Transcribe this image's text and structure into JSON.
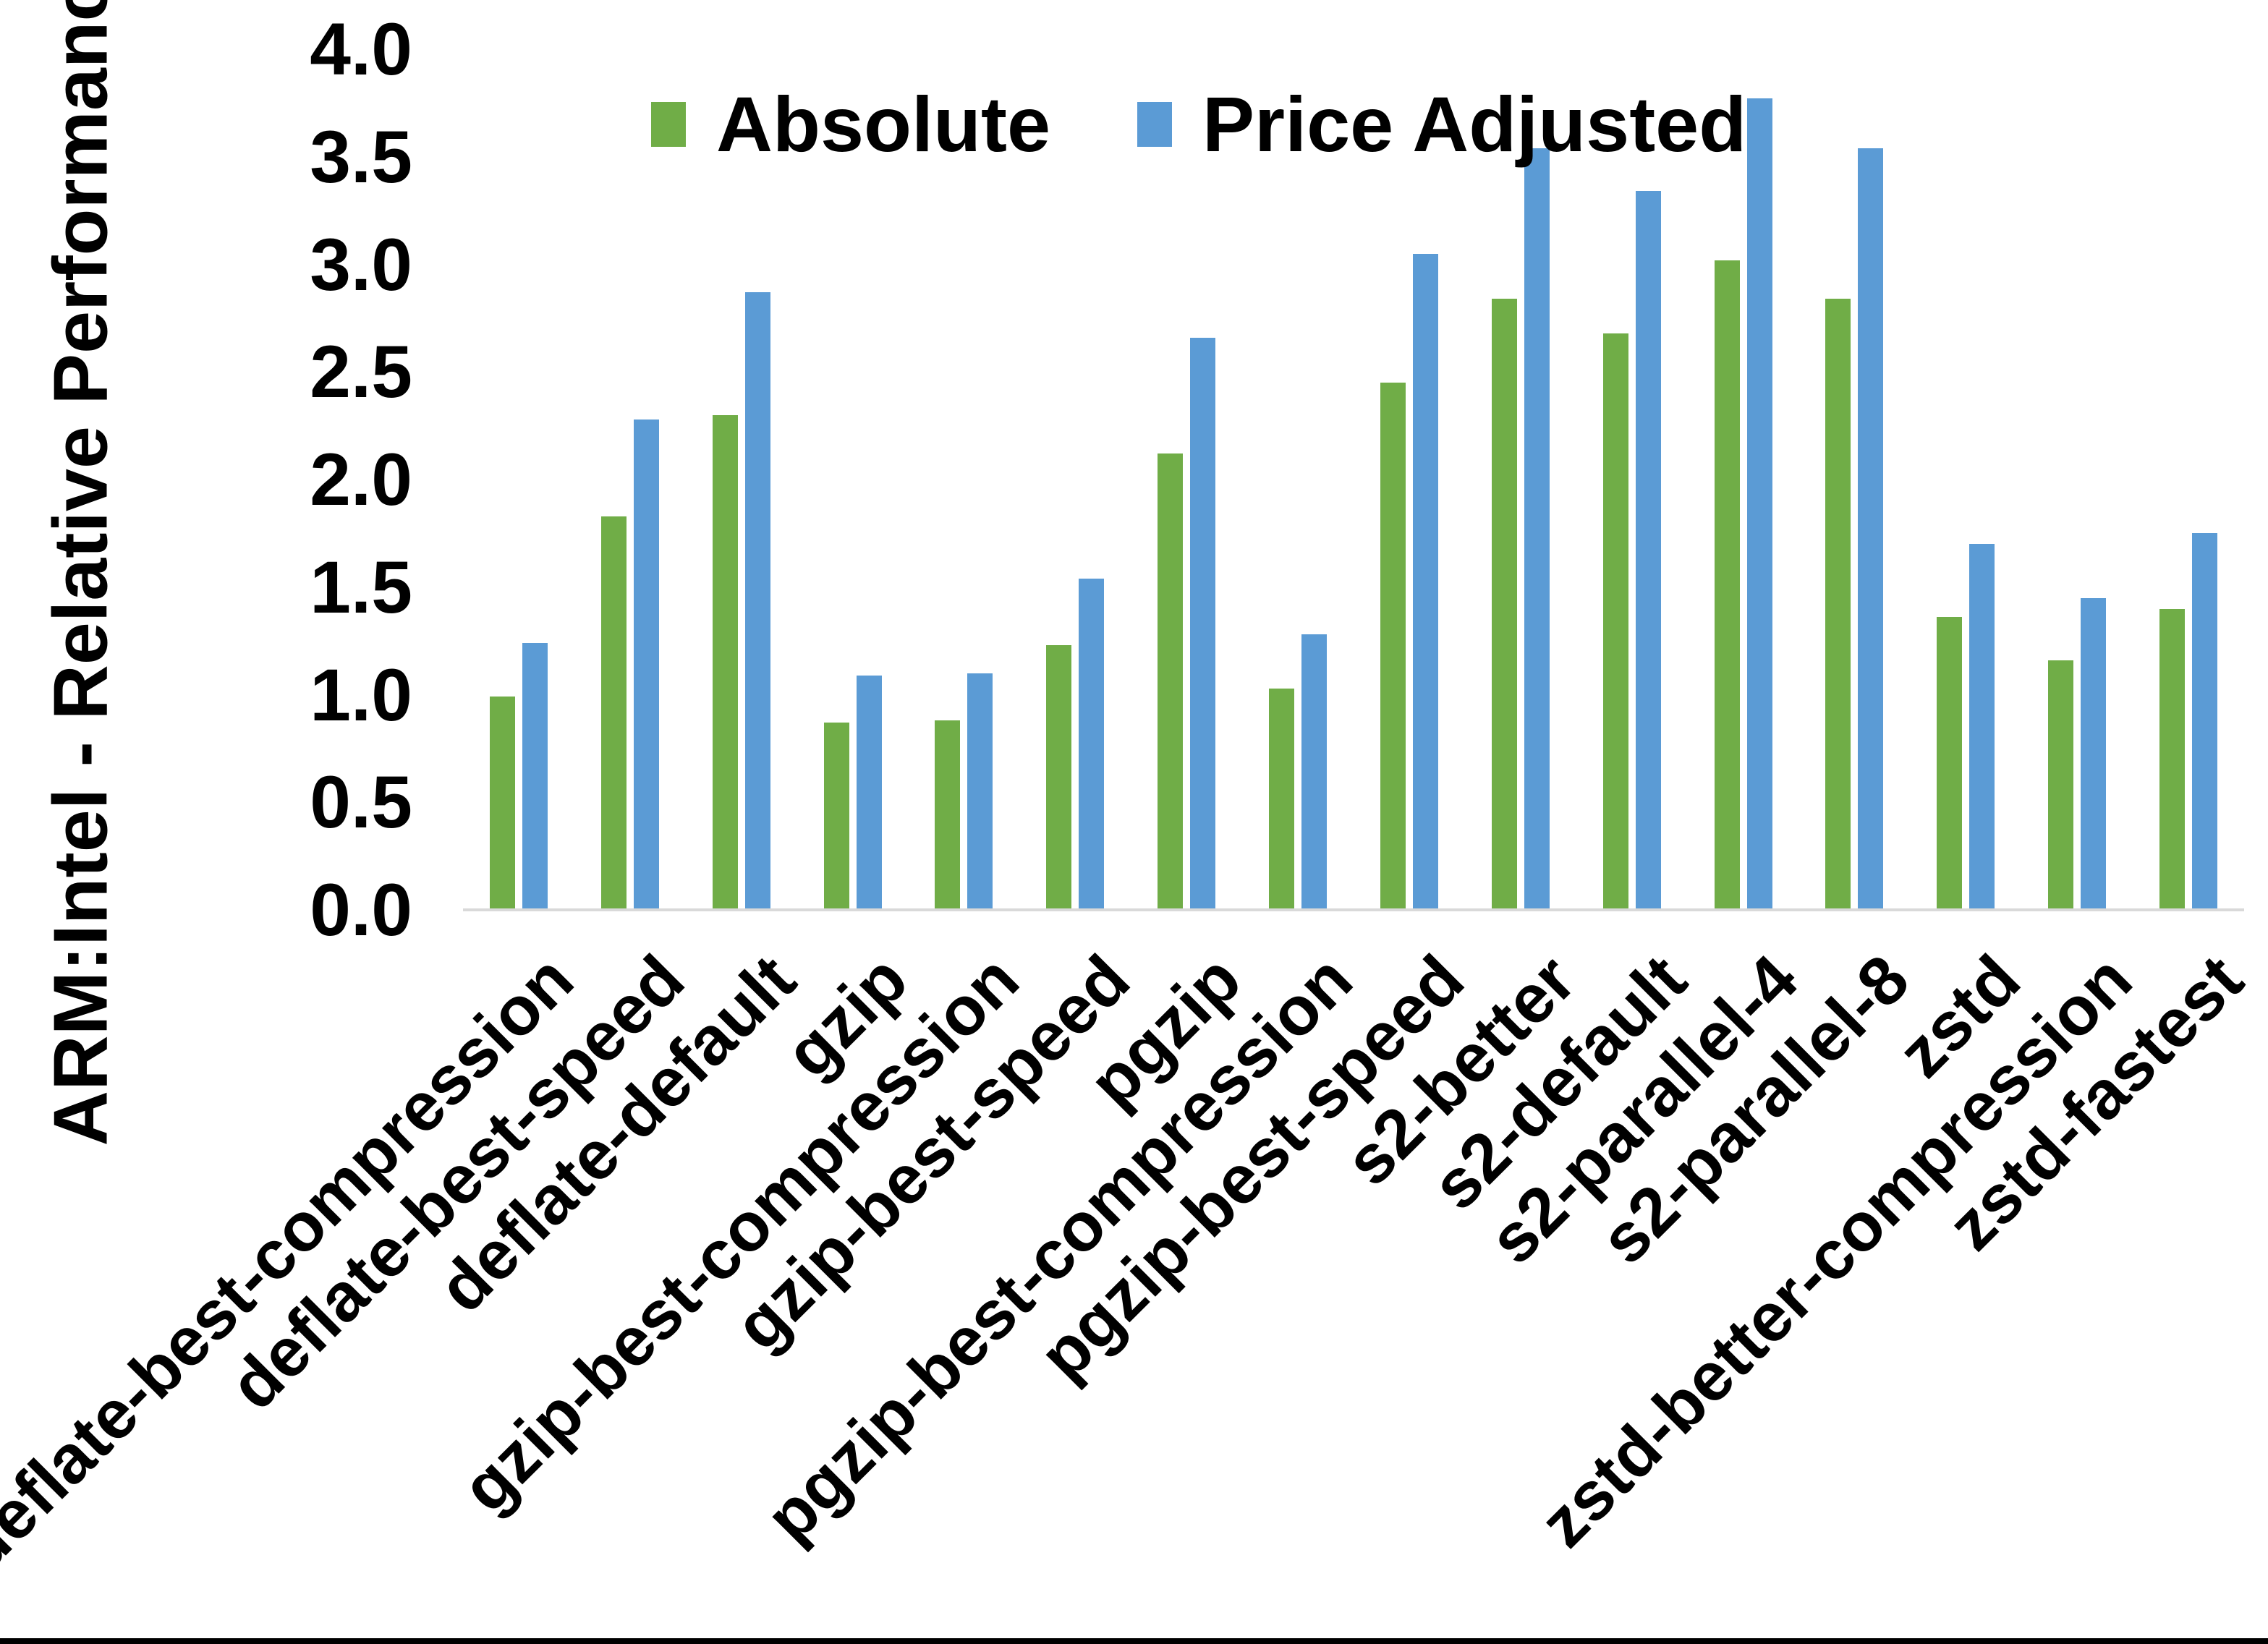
{
  "chart_data": {
    "type": "bar",
    "title": "",
    "ylabel": "ARM:Intel - Relative Performance",
    "xlabel": "",
    "ylim": [
      0,
      4.0
    ],
    "ytick_labels": [
      "0.0",
      "0.5",
      "1.0",
      "1.5",
      "2.0",
      "2.5",
      "3.0",
      "3.5",
      "4.0"
    ],
    "grid": "off",
    "legend_position": "top-center",
    "categories": [
      "deflate-best-compression",
      "deflate-best-speed",
      "deflate-default",
      "gzip",
      "gzip-best-compression",
      "gzip-best-speed",
      "pgzip",
      "pgzip-best-compression",
      "pgzip-best-speed",
      "s2-better",
      "s2-default",
      "s2-parallel-4",
      "s2-parallel-8",
      "zstd",
      "zstd-better-compression",
      "zstd-fastest"
    ],
    "series": [
      {
        "name": "Absolute",
        "color": "#70ad47",
        "values": [
          0.99,
          1.83,
          2.3,
          0.87,
          0.88,
          1.23,
          2.12,
          1.03,
          2.45,
          2.84,
          2.68,
          3.02,
          2.84,
          1.36,
          1.16,
          1.4
        ]
      },
      {
        "name": "Price Adjusted",
        "color": "#5b9bd5",
        "values": [
          1.24,
          2.28,
          2.87,
          1.09,
          1.1,
          1.54,
          2.66,
          1.28,
          3.05,
          3.54,
          3.34,
          3.77,
          3.54,
          1.7,
          1.45,
          1.75
        ]
      }
    ]
  },
  "colors": {
    "background": "#ffffff",
    "axis_line": "#d9d9d9",
    "text": "#000000",
    "bottom_strip": "#000000"
  }
}
